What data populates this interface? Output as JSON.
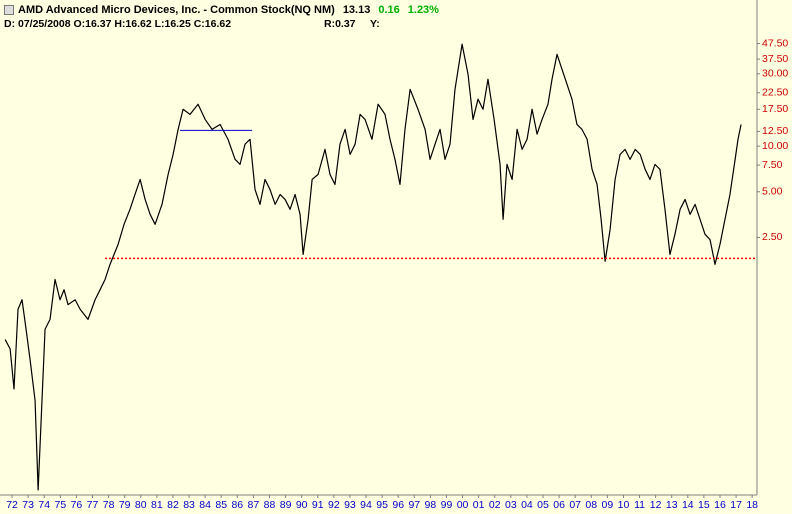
{
  "header": {
    "title": "AMD Advanced Micro Devices, Inc. - Common Stock(NQ NM)",
    "last": "13.13",
    "change": "0.16",
    "change_pct": "1.23%",
    "info": "D: 07/25/2008 O:16.37 H:16.62 L:16.25 C:16.62",
    "r": "R:0.37",
    "y": "Y:"
  },
  "chart_data": {
    "type": "line",
    "log_y": true,
    "grid": false,
    "xlim": [
      1971.25,
      2018.3
    ],
    "ylim": [
      0.05,
      70
    ],
    "xticks": [
      {
        "value": 1972,
        "label": "72"
      },
      {
        "value": 1973,
        "label": "73"
      },
      {
        "value": 1974,
        "label": "74"
      },
      {
        "value": 1975,
        "label": "75"
      },
      {
        "value": 1976,
        "label": "76"
      },
      {
        "value": 1977,
        "label": "77"
      },
      {
        "value": 1978,
        "label": "78"
      },
      {
        "value": 1979,
        "label": "79"
      },
      {
        "value": 1980,
        "label": "80"
      },
      {
        "value": 1981,
        "label": "81"
      },
      {
        "value": 1982,
        "label": "82"
      },
      {
        "value": 1983,
        "label": "83"
      },
      {
        "value": 1984,
        "label": "84"
      },
      {
        "value": 1985,
        "label": "85"
      },
      {
        "value": 1986,
        "label": "86"
      },
      {
        "value": 1987,
        "label": "87"
      },
      {
        "value": 1988,
        "label": "88"
      },
      {
        "value": 1989,
        "label": "89"
      },
      {
        "value": 1990,
        "label": "90"
      },
      {
        "value": 1991,
        "label": "91"
      },
      {
        "value": 1992,
        "label": "92"
      },
      {
        "value": 1993,
        "label": "93"
      },
      {
        "value": 1994,
        "label": "94"
      },
      {
        "value": 1995,
        "label": "95"
      },
      {
        "value": 1996,
        "label": "96"
      },
      {
        "value": 1997,
        "label": "97"
      },
      {
        "value": 1998,
        "label": "98"
      },
      {
        "value": 1999,
        "label": "99"
      },
      {
        "value": 2000,
        "label": "00"
      },
      {
        "value": 2001,
        "label": "01"
      },
      {
        "value": 2002,
        "label": "02"
      },
      {
        "value": 2003,
        "label": "03"
      },
      {
        "value": 2004,
        "label": "04"
      },
      {
        "value": 2005,
        "label": "05"
      },
      {
        "value": 2006,
        "label": "06"
      },
      {
        "value": 2007,
        "label": "07"
      },
      {
        "value": 2008,
        "label": "08"
      },
      {
        "value": 2009,
        "label": "09"
      },
      {
        "value": 2010,
        "label": "10"
      },
      {
        "value": 2011,
        "label": "11"
      },
      {
        "value": 2012,
        "label": "12"
      },
      {
        "value": 2013,
        "label": "13"
      },
      {
        "value": 2014,
        "label": "14"
      },
      {
        "value": 2015,
        "label": "15"
      },
      {
        "value": 2016,
        "label": "16"
      },
      {
        "value": 2017,
        "label": "17"
      },
      {
        "value": 2018,
        "label": "18"
      }
    ],
    "yticks": [
      {
        "value": 2.5,
        "label": "2.50"
      },
      {
        "value": 5,
        "label": "5.00"
      },
      {
        "value": 7.5,
        "label": "7.50"
      },
      {
        "value": 10,
        "label": "10.00"
      },
      {
        "value": 12.5,
        "label": "12.50"
      },
      {
        "value": 17.5,
        "label": "17.50"
      },
      {
        "value": 22.5,
        "label": "22.50"
      },
      {
        "value": 30,
        "label": "30.00"
      },
      {
        "value": 37.5,
        "label": "37.50"
      },
      {
        "value": 47.5,
        "label": "47.50"
      }
    ],
    "x": [
      1971.57,
      1971.88,
      1972.12,
      1972.37,
      1972.62,
      1972.87,
      1973.12,
      1973.43,
      1973.62,
      1973.86,
      1974.05,
      1974.36,
      1974.67,
      1974.98,
      1975.23,
      1975.48,
      1975.92,
      1976.23,
      1976.72,
      1977.16,
      1977.47,
      1977.78,
      1978.09,
      1978.59,
      1978.96,
      1979.33,
      1979.64,
      1979.96,
      1980.27,
      1980.58,
      1980.89,
      1981.32,
      1981.7,
      1982.01,
      1982.32,
      1982.63,
      1983.06,
      1983.56,
      1984.0,
      1984.43,
      1984.93,
      1985.42,
      1985.86,
      1986.17,
      1986.48,
      1986.79,
      1987.1,
      1987.41,
      1987.72,
      1988.03,
      1988.35,
      1988.66,
      1988.97,
      1989.28,
      1989.59,
      1989.9,
      1990.09,
      1990.4,
      1990.65,
      1991.02,
      1991.45,
      1991.76,
      1992.07,
      1992.38,
      1992.7,
      1993.01,
      1993.32,
      1993.63,
      1993.94,
      1994.37,
      1994.75,
      1995.18,
      1995.49,
      1995.8,
      1996.11,
      1996.42,
      1996.74,
      1997.23,
      1997.67,
      1997.98,
      1998.29,
      1998.6,
      1998.91,
      1999.22,
      1999.53,
      1999.97,
      2000.34,
      2000.65,
      2000.96,
      2001.27,
      2001.58,
      2001.96,
      2002.33,
      2002.52,
      2002.76,
      2003.08,
      2003.39,
      2003.7,
      2004.01,
      2004.32,
      2004.63,
      2004.94,
      2005.31,
      2005.56,
      2005.87,
      2006.18,
      2006.49,
      2006.8,
      2007.11,
      2007.42,
      2007.74,
      2008.05,
      2008.36,
      2008.61,
      2008.86,
      2009.17,
      2009.48,
      2009.79,
      2010.1,
      2010.41,
      2010.73,
      2011.04,
      2011.35,
      2011.65,
      2011.96,
      2012.27,
      2012.58,
      2012.89,
      2013.2,
      2013.52,
      2013.83,
      2014.14,
      2014.45,
      2014.76,
      2015.07,
      2015.38,
      2015.69,
      2016.0,
      2016.31,
      2016.62,
      2016.94,
      2017.12,
      2017.31
    ],
    "series": [
      {
        "color": "#000000",
        "values": [
          0.53,
          0.46,
          0.25,
          0.84,
          0.97,
          0.62,
          0.39,
          0.21,
          0.054,
          0.21,
          0.62,
          0.72,
          1.32,
          0.97,
          1.13,
          0.9,
          0.97,
          0.84,
          0.72,
          0.97,
          1.13,
          1.32,
          1.66,
          2.25,
          3.05,
          3.83,
          4.8,
          6.03,
          4.45,
          3.55,
          3.05,
          4.13,
          6.51,
          8.82,
          12.9,
          17.5,
          16.2,
          18.9,
          15.0,
          12.9,
          13.9,
          11.1,
          8.18,
          7.58,
          10.3,
          11.1,
          5.18,
          4.13,
          6.03,
          5.18,
          4.13,
          4.8,
          4.45,
          3.83,
          4.8,
          3.55,
          1.93,
          3.29,
          6.03,
          6.51,
          9.52,
          6.51,
          5.59,
          10.3,
          12.9,
          8.82,
          10.3,
          16.2,
          15.0,
          11.1,
          18.9,
          16.2,
          11.1,
          8.18,
          5.59,
          12.9,
          23.7,
          17.5,
          12.9,
          8.18,
          10.3,
          12.9,
          8.18,
          10.3,
          23.7,
          47.0,
          29.8,
          15.0,
          20.4,
          17.5,
          27.6,
          15.0,
          7.58,
          3.29,
          7.58,
          6.03,
          12.9,
          9.52,
          11.1,
          17.5,
          12.0,
          15.0,
          18.9,
          27.6,
          40.3,
          32.1,
          25.6,
          20.4,
          13.9,
          12.9,
          11.1,
          7.02,
          5.59,
          3.29,
          1.74,
          2.82,
          6.03,
          8.82,
          9.52,
          8.18,
          9.52,
          8.82,
          7.02,
          6.03,
          7.58,
          7.02,
          3.83,
          1.93,
          2.62,
          3.83,
          4.45,
          3.55,
          4.13,
          3.29,
          2.62,
          2.42,
          1.66,
          2.25,
          3.29,
          4.8,
          8.18,
          11.1,
          13.9
        ]
      }
    ],
    "reference_lines": [
      {
        "value": 1.82,
        "xlim": [
          1977.78,
          2018.3
        ],
        "color": "#ff0000",
        "dash": true
      },
      {
        "value": 12.7,
        "xlim": [
          1982.44,
          1986.92
        ],
        "color": "#0000cc",
        "dash": false
      }
    ],
    "xtick_color": "#0000cc",
    "ytick_color": "#cc0000"
  }
}
